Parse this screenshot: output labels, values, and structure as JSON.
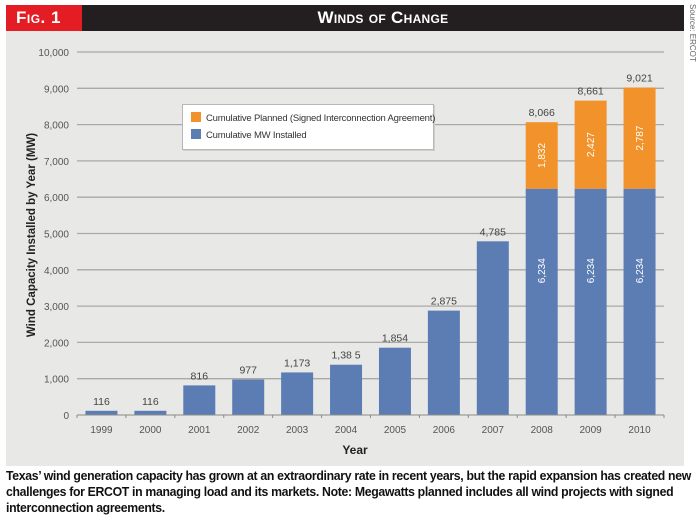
{
  "header": {
    "fig_label": "Fig. 1",
    "title": "Winds of Change",
    "source": "Source: ERCOT"
  },
  "colors": {
    "installed": "#5b7db4",
    "planned": "#f2922b",
    "fig_red": "#e31d23",
    "header_dark": "#231f20",
    "panel": "#e8e8e6"
  },
  "chart_data": {
    "type": "bar",
    "stacked": true,
    "title": "Winds of Change",
    "xlabel": "Year",
    "ylabel": "Wind Capacity Installed by Year (MW)",
    "ylim": [
      0,
      10000
    ],
    "yticks": [
      0,
      1000,
      2000,
      3000,
      4000,
      5000,
      6000,
      7000,
      8000,
      9000,
      10000
    ],
    "ytick_labels": [
      "0",
      "1,000",
      "2,000",
      "3,000",
      "4,000",
      "5,000",
      "6,000",
      "7,000",
      "8,000",
      "9,000",
      "10,000"
    ],
    "grid": true,
    "legend_position": "top-left",
    "categories": [
      "1999",
      "2000",
      "2001",
      "2002",
      "2003",
      "2004",
      "2005",
      "2006",
      "2007",
      "2008",
      "2009",
      "2010"
    ],
    "series": [
      {
        "name": "Cumulative MW Installed",
        "color": "#5b7db4",
        "values": [
          116,
          116,
          816,
          977,
          1173,
          1385,
          1854,
          2875,
          4785,
          6234,
          6234,
          6234
        ],
        "inner_labels": [
          null,
          null,
          null,
          null,
          null,
          null,
          null,
          null,
          null,
          "6,234",
          "6,234",
          "6,234"
        ]
      },
      {
        "name": "Cumulative Planned (Signed Interconnection Agreement)",
        "color": "#f2922b",
        "values": [
          0,
          0,
          0,
          0,
          0,
          0,
          0,
          0,
          0,
          1832,
          2427,
          2787
        ],
        "inner_labels": [
          null,
          null,
          null,
          null,
          null,
          null,
          null,
          null,
          null,
          "1,832",
          "2,427",
          "2,787"
        ]
      }
    ],
    "total_labels": [
      "116",
      "116",
      "816",
      "977",
      "1,173",
      "1,38 5",
      "1,854",
      "2,875",
      "4,785",
      "8,066",
      "8,661",
      "9,021"
    ],
    "totals": [
      116,
      116,
      816,
      977,
      1173,
      1385,
      1854,
      2875,
      4785,
      8066,
      8661,
      9021
    ]
  },
  "legend": {
    "items": [
      {
        "label": "Cumulative Planned (Signed Interconnection Agreement)",
        "color": "#f2922b"
      },
      {
        "label": "Cumulative MW Installed",
        "color": "#5b7db4"
      }
    ]
  },
  "caption": "Texas’ wind generation capacity has grown at an extraordinary rate in recent years, but the rapid expansion has created new challenges for ERCOT in managing load and its markets. Note: Megawatts planned includes all wind projects with signed interconnection agreements."
}
